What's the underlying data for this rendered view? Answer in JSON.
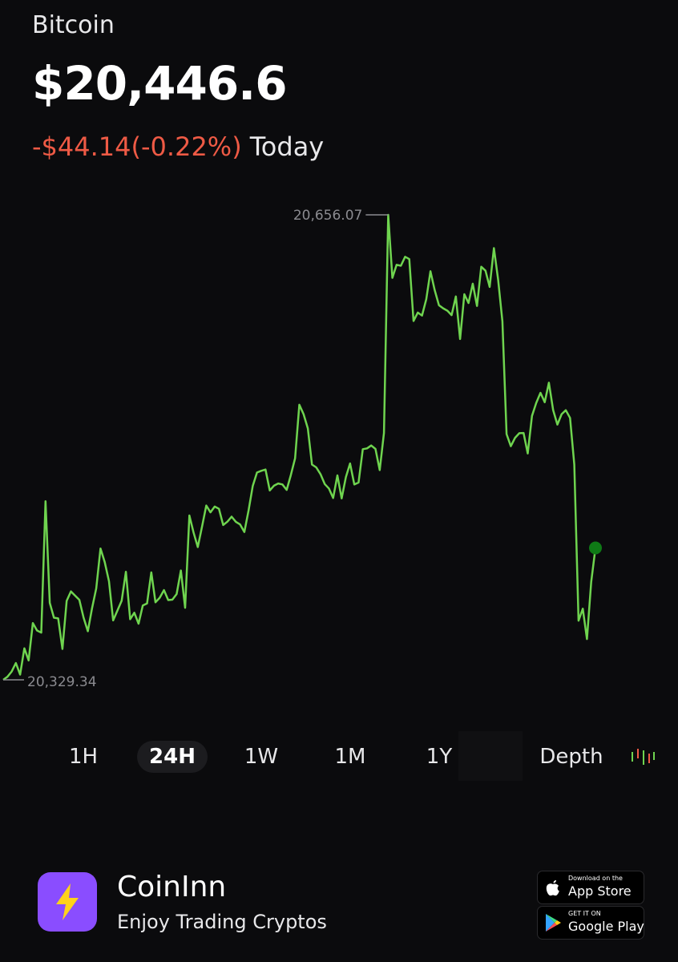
{
  "asset": {
    "name": "Bitcoin",
    "price": "$20,446.6",
    "change": "-$44.14(-0.22%)",
    "change_period": "Today"
  },
  "colors": {
    "line": "#6fd44f",
    "endpoint": "#0f7a16",
    "negative": "#ee5a45",
    "app_logo": "#8a4dff",
    "bolt": "#ffd21a"
  },
  "chart_data": {
    "type": "line",
    "title": "",
    "xlabel": "",
    "ylabel": "",
    "grid": false,
    "max_label": "20,656.07",
    "min_label": "20,329.34",
    "ylim": [
      20329.34,
      20656.07
    ],
    "series": [
      {
        "name": "",
        "values": [
          20329.34,
          20331.5,
          20335.2,
          20341.1,
          20333.0,
          20351.5,
          20343.0,
          20369.2,
          20364.0,
          20362.5,
          20454.8,
          20383.4,
          20373.0,
          20372.5,
          20351.0,
          20384.8,
          20391.5,
          20388.5,
          20385.5,
          20373.0,
          20363.5,
          20379.5,
          20393.6,
          20421.6,
          20412.0,
          20398.6,
          20371.1,
          20378.0,
          20384.9,
          20405.3,
          20371.9,
          20376.5,
          20368.8,
          20381.6,
          20383.0,
          20404.8,
          20383.8,
          20387.0,
          20392.4,
          20385.4,
          20385.7,
          20389.6,
          20406.2,
          20380.0,
          20444.8,
          20432.9,
          20422.6,
          20437.0,
          20451.8,
          20447.0,
          20451.1,
          20449.5,
          20438.1,
          20440.5,
          20444.0,
          20440.4,
          20438.5,
          20433.2,
          20448.5,
          20465.6,
          20475.0,
          20476.2,
          20477.1,
          20462.4,
          20465.7,
          20467.3,
          20466.6,
          20462.8,
          20473.2,
          20485.0,
          20522.6,
          20516.0,
          20506.0,
          20480.6,
          20478.6,
          20473.9,
          20466.9,
          20463.8,
          20457.1,
          20473.0,
          20456.8,
          20471.8,
          20481.4,
          20466.6,
          20468.0,
          20491.4,
          20492.0,
          20494.0,
          20491.6,
          20476.7,
          20502.8,
          20656.07,
          20611.8,
          20621.0,
          20620.3,
          20626.6,
          20625.0,
          20581.5,
          20587.4,
          20585.3,
          20596.8,
          20616.4,
          20603.2,
          20592.6,
          20590.4,
          20588.7,
          20585.6,
          20598.7,
          20568.8,
          20600.3,
          20594.1,
          20607.7,
          20592.1,
          20619.6,
          20616.8,
          20605.4,
          20632.7,
          20610.3,
          20581.2,
          20502.0,
          20493.5,
          20499.4,
          20502.6,
          20502.8,
          20488.4,
          20514.8,
          20523.9,
          20531.0,
          20524.4,
          20538.1,
          20518.9,
          20508.7,
          20516.0,
          20518.8,
          20513.4,
          20480.6,
          20370.9,
          20379.3,
          20358.0,
          20398.2,
          20422.0
        ]
      }
    ]
  },
  "timeframes": {
    "items": [
      "1H",
      "24H",
      "1W",
      "1M",
      "1Y"
    ],
    "active": "24H",
    "depth_label": "Depth"
  },
  "footer": {
    "app_name": "CoinInn",
    "tagline": "Enjoy Trading Cryptos",
    "appstore_small": "Download on the",
    "appstore_big": "App Store",
    "gplay_small": "GET IT ON",
    "gplay_big": "Google Play"
  }
}
